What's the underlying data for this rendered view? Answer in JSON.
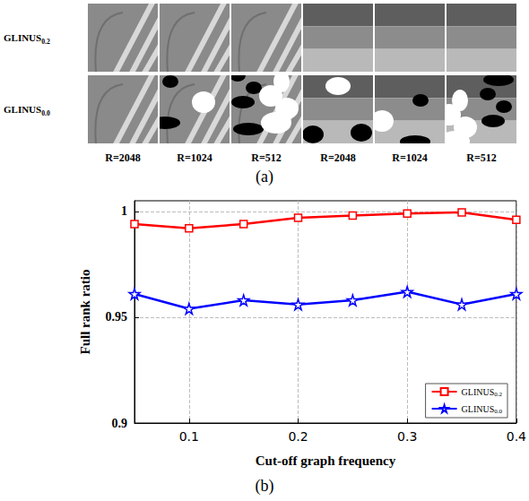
{
  "panel_a": {
    "row_labels": [
      "GLINUS0.2",
      "GLINUS0.0"
    ],
    "column_labels": [
      "R=2048",
      "R=1024",
      "R=512",
      "R=2048",
      "R=1024",
      "R=512"
    ],
    "caption": "(a)"
  },
  "chart_data": {
    "type": "line",
    "caption": "(b)",
    "x_label": "Cut-off graph frequency",
    "y_label": "Full rank ratio",
    "x": [
      0.05,
      0.1,
      0.15,
      0.2,
      0.25,
      0.3,
      0.35,
      0.4
    ],
    "series": [
      {
        "name": "GLINUS0.2",
        "color": "#ff0000",
        "marker": "square",
        "values": [
          0.994,
          0.992,
          0.994,
          0.997,
          0.998,
          0.999,
          0.9995,
          0.996
        ]
      },
      {
        "name": "GLINUS0.0",
        "color": "#0000ff",
        "marker": "star",
        "values": [
          0.961,
          0.954,
          0.958,
          0.956,
          0.958,
          0.962,
          0.956,
          0.961
        ]
      }
    ],
    "xlim": [
      0.05,
      0.4
    ],
    "xticks": [
      0.1,
      0.2,
      0.3,
      0.4
    ],
    "ylim": [
      0.9,
      1.005
    ],
    "yticks": [
      0.9,
      0.95,
      1
    ],
    "grid": true,
    "legend": "lower right"
  }
}
